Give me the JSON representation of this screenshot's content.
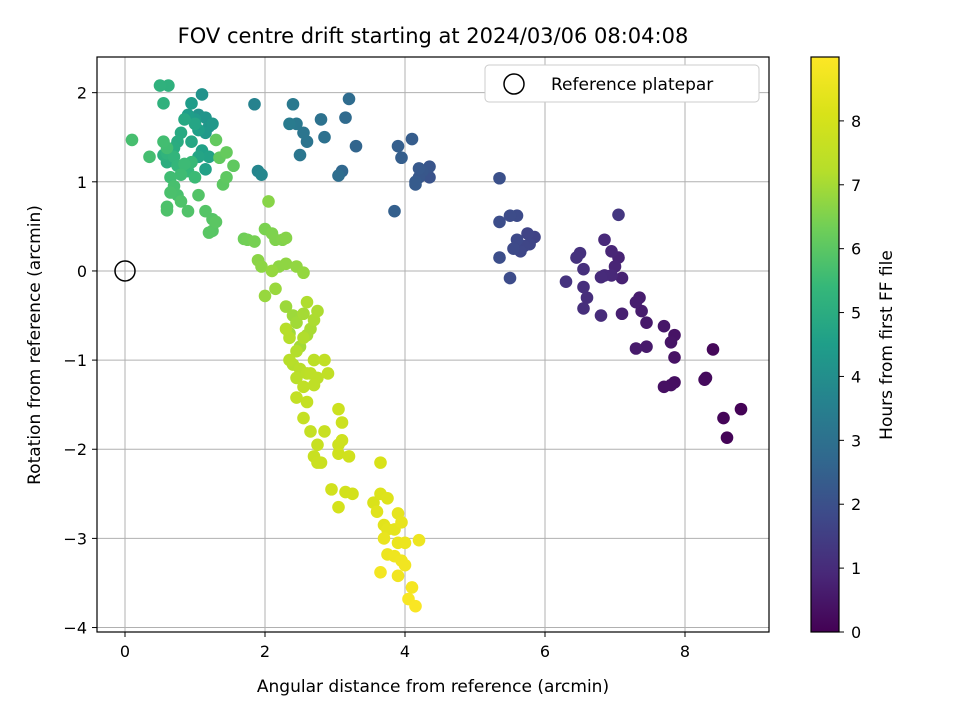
{
  "chart_data": {
    "type": "scatter",
    "title": "FOV centre drift starting at 2024/03/06 08:04:08",
    "xlabel": "Angular distance from reference (arcmin)",
    "ylabel": "Rotation from reference (arcmin)",
    "xlim": [
      -0.4,
      9.2
    ],
    "ylim": [
      -4.05,
      2.4
    ],
    "xticks": [
      0,
      2,
      4,
      6,
      8
    ],
    "yticks": [
      -4,
      -3,
      -2,
      -1,
      0,
      1,
      2
    ],
    "xtick_labels": [
      "0",
      "2",
      "4",
      "6",
      "8"
    ],
    "ytick_labels": [
      "−4",
      "−3",
      "−2",
      "−1",
      "0",
      "1",
      "2"
    ],
    "grid": true,
    "legend": {
      "placement": "top-right",
      "entries": [
        "Reference platepar"
      ]
    },
    "reference_point": {
      "x": 0,
      "y": 0
    },
    "colorbar": {
      "label": "Hours from first FF file",
      "colormap": "viridis",
      "range": [
        0,
        9
      ],
      "ticks": [
        0,
        1,
        2,
        3,
        4,
        5,
        6,
        7,
        8
      ],
      "tick_labels": [
        "0",
        "1",
        "2",
        "3",
        "4",
        "5",
        "6",
        "7",
        "8"
      ]
    },
    "points": [
      [
        8.8,
        -1.55,
        0.05
      ],
      [
        8.6,
        -1.87,
        0.08
      ],
      [
        8.55,
        -1.65,
        0.1
      ],
      [
        8.4,
        -0.88,
        0.15
      ],
      [
        8.3,
        -1.2,
        0.2
      ],
      [
        8.28,
        -1.22,
        0.22
      ],
      [
        7.85,
        -1.25,
        0.3
      ],
      [
        7.8,
        -1.28,
        0.33
      ],
      [
        7.7,
        -1.3,
        0.35
      ],
      [
        7.85,
        -0.97,
        0.4
      ],
      [
        7.85,
        -0.72,
        0.42
      ],
      [
        7.8,
        -0.8,
        0.45
      ],
      [
        7.7,
        -0.62,
        0.5
      ],
      [
        7.45,
        -0.58,
        0.55
      ],
      [
        7.45,
        -0.85,
        0.58
      ],
      [
        7.3,
        -0.87,
        0.6
      ],
      [
        7.38,
        -0.45,
        0.62
      ],
      [
        7.35,
        -0.3,
        0.65
      ],
      [
        7.3,
        -0.35,
        0.68
      ],
      [
        7.1,
        -0.48,
        0.72
      ],
      [
        7.1,
        -0.08,
        0.75
      ],
      [
        7.05,
        0.15,
        0.8
      ],
      [
        7.0,
        0.05,
        0.83
      ],
      [
        6.95,
        0.22,
        0.86
      ],
      [
        6.95,
        -0.05,
        0.9
      ],
      [
        6.85,
        0.35,
        0.93
      ],
      [
        6.85,
        -0.05,
        0.95
      ],
      [
        6.8,
        -0.07,
        0.98
      ],
      [
        6.8,
        -0.5,
        1.0
      ],
      [
        6.6,
        -0.3,
        1.05
      ],
      [
        6.55,
        -0.42,
        1.08
      ],
      [
        6.55,
        -0.18,
        1.1
      ],
      [
        6.55,
        0.02,
        1.12
      ],
      [
        6.5,
        0.2,
        1.15
      ],
      [
        6.45,
        0.15,
        1.18
      ],
      [
        6.3,
        -0.12,
        1.2
      ],
      [
        7.05,
        0.63,
        1.3
      ],
      [
        5.85,
        0.38,
        1.6
      ],
      [
        5.75,
        0.42,
        1.65
      ],
      [
        5.78,
        0.3,
        1.7
      ],
      [
        5.7,
        0.28,
        1.72
      ],
      [
        5.65,
        0.22,
        1.75
      ],
      [
        5.6,
        0.35,
        1.8
      ],
      [
        5.55,
        0.25,
        1.82
      ],
      [
        5.6,
        0.62,
        1.85
      ],
      [
        5.5,
        0.62,
        1.88
      ],
      [
        5.5,
        -0.08,
        1.9
      ],
      [
        5.35,
        0.55,
        1.92
      ],
      [
        5.35,
        0.15,
        1.95
      ],
      [
        5.35,
        1.04,
        2.0
      ],
      [
        4.35,
        1.05,
        2.1
      ],
      [
        4.35,
        1.17,
        2.15
      ],
      [
        4.25,
        1.12,
        2.2
      ],
      [
        4.2,
        1.05,
        2.22
      ],
      [
        4.2,
        1.15,
        2.25
      ],
      [
        4.15,
        1.0,
        2.3
      ],
      [
        4.15,
        0.97,
        2.32
      ],
      [
        4.1,
        1.48,
        2.38
      ],
      [
        3.95,
        1.27,
        2.4
      ],
      [
        3.9,
        1.4,
        2.45
      ],
      [
        3.85,
        0.67,
        2.48
      ],
      [
        3.3,
        1.4,
        2.6
      ],
      [
        3.1,
        1.12,
        2.7
      ],
      [
        3.15,
        1.72,
        2.8
      ],
      [
        3.2,
        1.93,
        2.85
      ],
      [
        3.05,
        1.07,
        2.9
      ],
      [
        2.85,
        1.5,
        3.0
      ],
      [
        2.8,
        1.7,
        3.05
      ],
      [
        2.6,
        1.45,
        3.1
      ],
      [
        2.55,
        1.55,
        3.15
      ],
      [
        2.5,
        1.3,
        3.2
      ],
      [
        2.45,
        1.65,
        3.25
      ],
      [
        2.4,
        1.87,
        3.3
      ],
      [
        2.35,
        1.65,
        3.35
      ],
      [
        1.85,
        1.87,
        3.6
      ],
      [
        1.9,
        1.12,
        3.7
      ],
      [
        1.95,
        1.08,
        3.75
      ],
      [
        1.1,
        1.98,
        4.1
      ],
      [
        1.05,
        1.75,
        4.15
      ],
      [
        1.15,
        1.72,
        4.2
      ],
      [
        1.2,
        1.62,
        4.25
      ],
      [
        1.25,
        1.65,
        4.3
      ],
      [
        1.15,
        1.55,
        4.35
      ],
      [
        1.0,
        1.7,
        4.4
      ],
      [
        0.95,
        1.88,
        4.45
      ],
      [
        0.9,
        1.75,
        4.5
      ],
      [
        1.05,
        1.58,
        4.55
      ],
      [
        1.1,
        1.35,
        4.6
      ],
      [
        1.15,
        1.14,
        4.62
      ],
      [
        1.2,
        1.28,
        4.65
      ],
      [
        1.05,
        1.28,
        4.7
      ],
      [
        1.0,
        1.65,
        4.75
      ],
      [
        0.95,
        1.45,
        4.8
      ],
      [
        0.85,
        1.7,
        4.85
      ],
      [
        0.8,
        1.55,
        4.9
      ],
      [
        0.75,
        1.45,
        4.95
      ],
      [
        0.7,
        1.38,
        5.0
      ],
      [
        0.6,
        1.22,
        5.05
      ],
      [
        0.55,
        1.3,
        5.1
      ],
      [
        0.62,
        2.08,
        5.15
      ],
      [
        0.5,
        2.08,
        5.18
      ],
      [
        0.55,
        1.88,
        5.2
      ],
      [
        0.6,
        1.32,
        5.25
      ],
      [
        0.7,
        1.28,
        5.3
      ],
      [
        0.75,
        1.18,
        5.35
      ],
      [
        0.9,
        1.12,
        5.4
      ],
      [
        0.95,
        1.22,
        5.45
      ],
      [
        1.0,
        1.05,
        5.5
      ],
      [
        0.85,
        1.2,
        5.52
      ],
      [
        0.8,
        1.08,
        5.55
      ],
      [
        0.65,
        1.05,
        5.58
      ],
      [
        0.6,
        1.38,
        5.6
      ],
      [
        0.55,
        1.45,
        5.62
      ],
      [
        0.35,
        1.28,
        5.65
      ],
      [
        0.1,
        1.47,
        5.68
      ],
      [
        0.7,
        0.95,
        5.7
      ],
      [
        0.75,
        0.85,
        5.72
      ],
      [
        0.65,
        0.88,
        5.75
      ],
      [
        0.6,
        0.72,
        5.78
      ],
      [
        0.6,
        0.68,
        5.8
      ],
      [
        0.8,
        0.78,
        5.82
      ],
      [
        0.9,
        0.67,
        5.85
      ],
      [
        1.05,
        0.85,
        5.88
      ],
      [
        1.15,
        0.67,
        5.9
      ],
      [
        1.25,
        0.58,
        5.92
      ],
      [
        1.25,
        0.45,
        5.95
      ],
      [
        1.2,
        0.43,
        5.97
      ],
      [
        1.3,
        0.55,
        6.0
      ],
      [
        1.4,
        0.97,
        6.02
      ],
      [
        1.45,
        1.05,
        6.05
      ],
      [
        1.55,
        1.18,
        6.08
      ],
      [
        1.35,
        1.27,
        6.1
      ],
      [
        1.3,
        1.47,
        6.12
      ],
      [
        1.45,
        1.33,
        6.15
      ],
      [
        1.7,
        0.36,
        6.3
      ],
      [
        1.75,
        0.35,
        6.35
      ],
      [
        1.85,
        0.33,
        6.4
      ],
      [
        2.0,
        0.47,
        6.45
      ],
      [
        2.1,
        0.42,
        6.5
      ],
      [
        2.15,
        0.35,
        6.52
      ],
      [
        2.25,
        0.35,
        6.55
      ],
      [
        2.3,
        0.37,
        6.6
      ],
      [
        2.05,
        0.78,
        6.62
      ],
      [
        1.9,
        0.12,
        6.65
      ],
      [
        1.95,
        0.05,
        6.68
      ],
      [
        2.2,
        0.05,
        6.7
      ],
      [
        2.3,
        0.08,
        6.72
      ],
      [
        2.45,
        0.05,
        6.75
      ],
      [
        2.55,
        -0.02,
        6.78
      ],
      [
        2.1,
        0.0,
        6.8
      ],
      [
        2.0,
        -0.28,
        6.82
      ],
      [
        2.15,
        -0.2,
        6.85
      ],
      [
        2.3,
        -0.4,
        6.88
      ],
      [
        2.4,
        -0.5,
        6.9
      ],
      [
        2.35,
        -0.7,
        6.92
      ],
      [
        2.45,
        -0.58,
        6.95
      ],
      [
        2.5,
        -0.85,
        6.98
      ],
      [
        2.55,
        -0.48,
        7.0
      ],
      [
        2.6,
        -0.72,
        7.02
      ],
      [
        2.65,
        -0.65,
        7.05
      ],
      [
        2.7,
        -0.55,
        7.08
      ],
      [
        2.75,
        -0.45,
        7.1
      ],
      [
        2.6,
        -0.35,
        7.12
      ],
      [
        2.55,
        -0.75,
        7.15
      ],
      [
        2.45,
        -0.9,
        7.18
      ],
      [
        2.4,
        -1.05,
        7.2
      ],
      [
        2.35,
        -0.75,
        7.22
      ],
      [
        2.3,
        -0.65,
        7.25
      ],
      [
        2.35,
        -1.0,
        7.28
      ],
      [
        2.5,
        -1.1,
        7.3
      ],
      [
        2.45,
        -1.2,
        7.32
      ],
      [
        2.6,
        -1.15,
        7.35
      ],
      [
        2.7,
        -1.0,
        7.38
      ],
      [
        2.65,
        -1.15,
        7.4
      ],
      [
        2.75,
        -1.2,
        7.42
      ],
      [
        2.7,
        -1.28,
        7.45
      ],
      [
        2.55,
        -1.3,
        7.48
      ],
      [
        2.85,
        -1.0,
        7.5
      ],
      [
        2.9,
        -1.15,
        7.52
      ],
      [
        2.45,
        -1.42,
        7.55
      ],
      [
        2.6,
        -1.47,
        7.58
      ],
      [
        2.55,
        -1.65,
        7.6
      ],
      [
        2.65,
        -1.8,
        7.62
      ],
      [
        2.75,
        -1.95,
        7.65
      ],
      [
        2.85,
        -1.8,
        7.68
      ],
      [
        2.7,
        -2.08,
        7.7
      ],
      [
        2.8,
        -2.15,
        7.72
      ],
      [
        2.75,
        -2.15,
        7.75
      ],
      [
        3.05,
        -1.55,
        7.78
      ],
      [
        3.1,
        -1.7,
        7.8
      ],
      [
        3.05,
        -1.95,
        7.82
      ],
      [
        3.1,
        -1.9,
        7.85
      ],
      [
        3.05,
        -2.05,
        7.88
      ],
      [
        3.2,
        -2.08,
        7.9
      ],
      [
        2.95,
        -2.45,
        7.92
      ],
      [
        3.15,
        -2.48,
        7.95
      ],
      [
        3.25,
        -2.5,
        7.98
      ],
      [
        3.05,
        -2.65,
        8.0
      ],
      [
        3.65,
        -2.15,
        8.1
      ],
      [
        3.55,
        -2.6,
        8.15
      ],
      [
        3.65,
        -2.5,
        8.2
      ],
      [
        3.75,
        -2.55,
        8.25
      ],
      [
        3.6,
        -2.7,
        8.3
      ],
      [
        3.7,
        -2.85,
        8.35
      ],
      [
        3.75,
        -2.9,
        8.4
      ],
      [
        3.85,
        -2.9,
        8.42
      ],
      [
        3.9,
        -2.72,
        8.45
      ],
      [
        3.95,
        -2.82,
        8.5
      ],
      [
        3.7,
        -3.0,
        8.52
      ],
      [
        3.9,
        -3.05,
        8.55
      ],
      [
        4.0,
        -3.05,
        8.58
      ],
      [
        4.2,
        -3.02,
        8.6
      ],
      [
        3.75,
        -3.18,
        8.62
      ],
      [
        3.85,
        -3.2,
        8.65
      ],
      [
        3.95,
        -3.25,
        8.68
      ],
      [
        4.0,
        -3.3,
        8.7
      ],
      [
        3.9,
        -3.42,
        8.72
      ],
      [
        3.65,
        -3.38,
        8.75
      ],
      [
        4.1,
        -3.55,
        8.8
      ],
      [
        4.05,
        -3.68,
        8.85
      ],
      [
        4.15,
        -3.76,
        8.9
      ]
    ]
  }
}
